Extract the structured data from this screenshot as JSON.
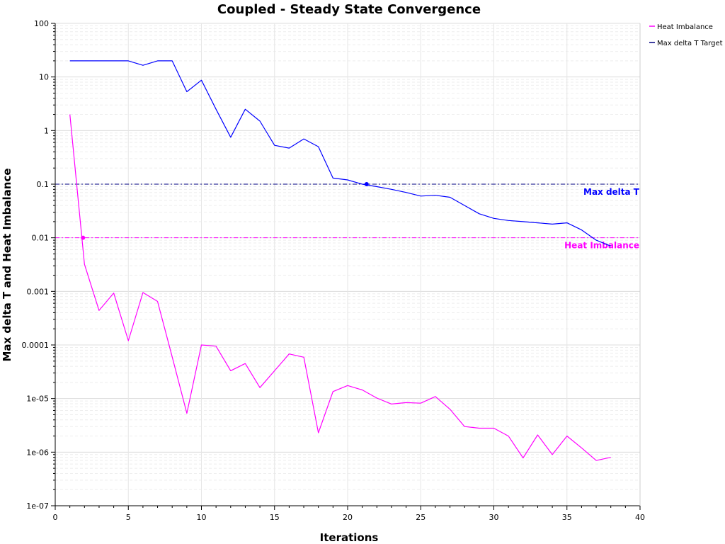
{
  "chart_data": {
    "type": "line",
    "title": "Coupled - Steady State Convergence",
    "xlabel": "Iterations",
    "ylabel": "Max delta T and Heat Imbalance",
    "xlim": [
      0,
      40
    ],
    "x_ticks": [
      0,
      5,
      10,
      15,
      20,
      25,
      30,
      35,
      40
    ],
    "y_scale": "log",
    "ylim": [
      1e-07,
      100
    ],
    "y_ticks": [
      100,
      10,
      1,
      0.1,
      0.01,
      0.001,
      0.0001,
      1e-05,
      1e-06,
      1e-07
    ],
    "y_tick_labels": [
      "100",
      "10",
      "1",
      "0.1",
      "0.01",
      "0.001",
      "0.0001",
      "1e-05",
      "1e-06",
      "1e-07"
    ],
    "grid": true,
    "legend_position": "top-right-outside",
    "legend": [
      {
        "label": "Heat Imbalance",
        "color": "#ff00ff"
      },
      {
        "label": "Max delta T Target",
        "color": "#000080"
      }
    ],
    "series": [
      {
        "name": "Max delta T",
        "color": "#0000ff",
        "x": [
          1,
          2,
          3,
          4,
          5,
          6,
          7,
          8,
          9,
          10,
          11,
          12,
          13,
          14,
          15,
          16,
          17,
          18,
          19,
          20,
          21,
          22,
          23,
          24,
          25,
          26,
          27,
          28,
          29,
          30,
          31,
          32,
          33,
          34,
          35,
          36,
          37,
          38
        ],
        "values": [
          20,
          20,
          20,
          20,
          20,
          16.5,
          20,
          20,
          5.3,
          8.7,
          2.5,
          0.75,
          2.5,
          1.5,
          0.53,
          0.47,
          0.7,
          0.5,
          0.13,
          0.12,
          0.1,
          0.09,
          0.08,
          0.07,
          0.06,
          0.062,
          0.057,
          0.04,
          0.028,
          0.023,
          0.021,
          0.02,
          0.019,
          0.018,
          0.019,
          0.014,
          0.009,
          0.007
        ]
      },
      {
        "name": "Heat Imbalance",
        "color": "#ff00ff",
        "x": [
          1,
          2,
          3,
          4,
          5,
          6,
          7,
          8,
          9,
          10,
          11,
          12,
          13,
          14,
          15,
          16,
          17,
          18,
          19,
          20,
          21,
          22,
          23,
          24,
          25,
          26,
          27,
          28,
          29,
          30,
          31,
          32,
          33,
          34,
          35,
          36,
          37,
          38
        ],
        "values": [
          2.0,
          0.0032,
          0.00044,
          0.00093,
          0.00012,
          0.00095,
          0.00065,
          6e-05,
          5.3e-06,
          0.0001,
          9.5e-05,
          3.3e-05,
          4.5e-05,
          1.6e-05,
          3.3e-05,
          6.8e-05,
          5.9e-05,
          2.3e-06,
          1.35e-05,
          1.75e-05,
          1.45e-05,
          1.02e-05,
          7.9e-06,
          8.4e-06,
          8.2e-06,
          1.09e-05,
          6.3e-06,
          3e-06,
          2.8e-06,
          2.8e-06,
          2e-06,
          7.8e-07,
          2.1e-06,
          9e-07,
          2e-06,
          1.2e-06,
          7e-07,
          8e-07
        ]
      }
    ],
    "reference_lines": [
      {
        "name": "Max delta T",
        "value": 0.1,
        "color": "#000080",
        "label_color": "#0000ff",
        "style": "dash-dot",
        "crossing_x": 21.3
      },
      {
        "name": "Heat Imbalance",
        "value": 0.01,
        "color": "#ff00ff",
        "label_color": "#ff00ff",
        "style": "dash-dot",
        "crossing_x": 1.9
      }
    ]
  }
}
